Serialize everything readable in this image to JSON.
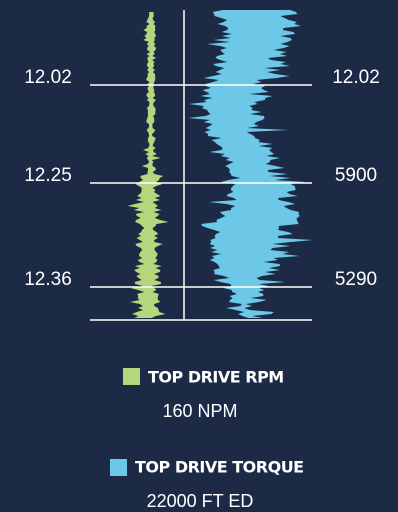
{
  "left_labels": [
    "12.02",
    "12.25",
    "12.36"
  ],
  "right_labels": [
    "12.02",
    "5900",
    "5290"
  ],
  "legend": [
    {
      "label": "TOP DRIVE RPM",
      "value": "160 NPM"
    },
    {
      "label": "TOP DRIVE TORQUE",
      "value": "22000 FT ED"
    }
  ]
}
